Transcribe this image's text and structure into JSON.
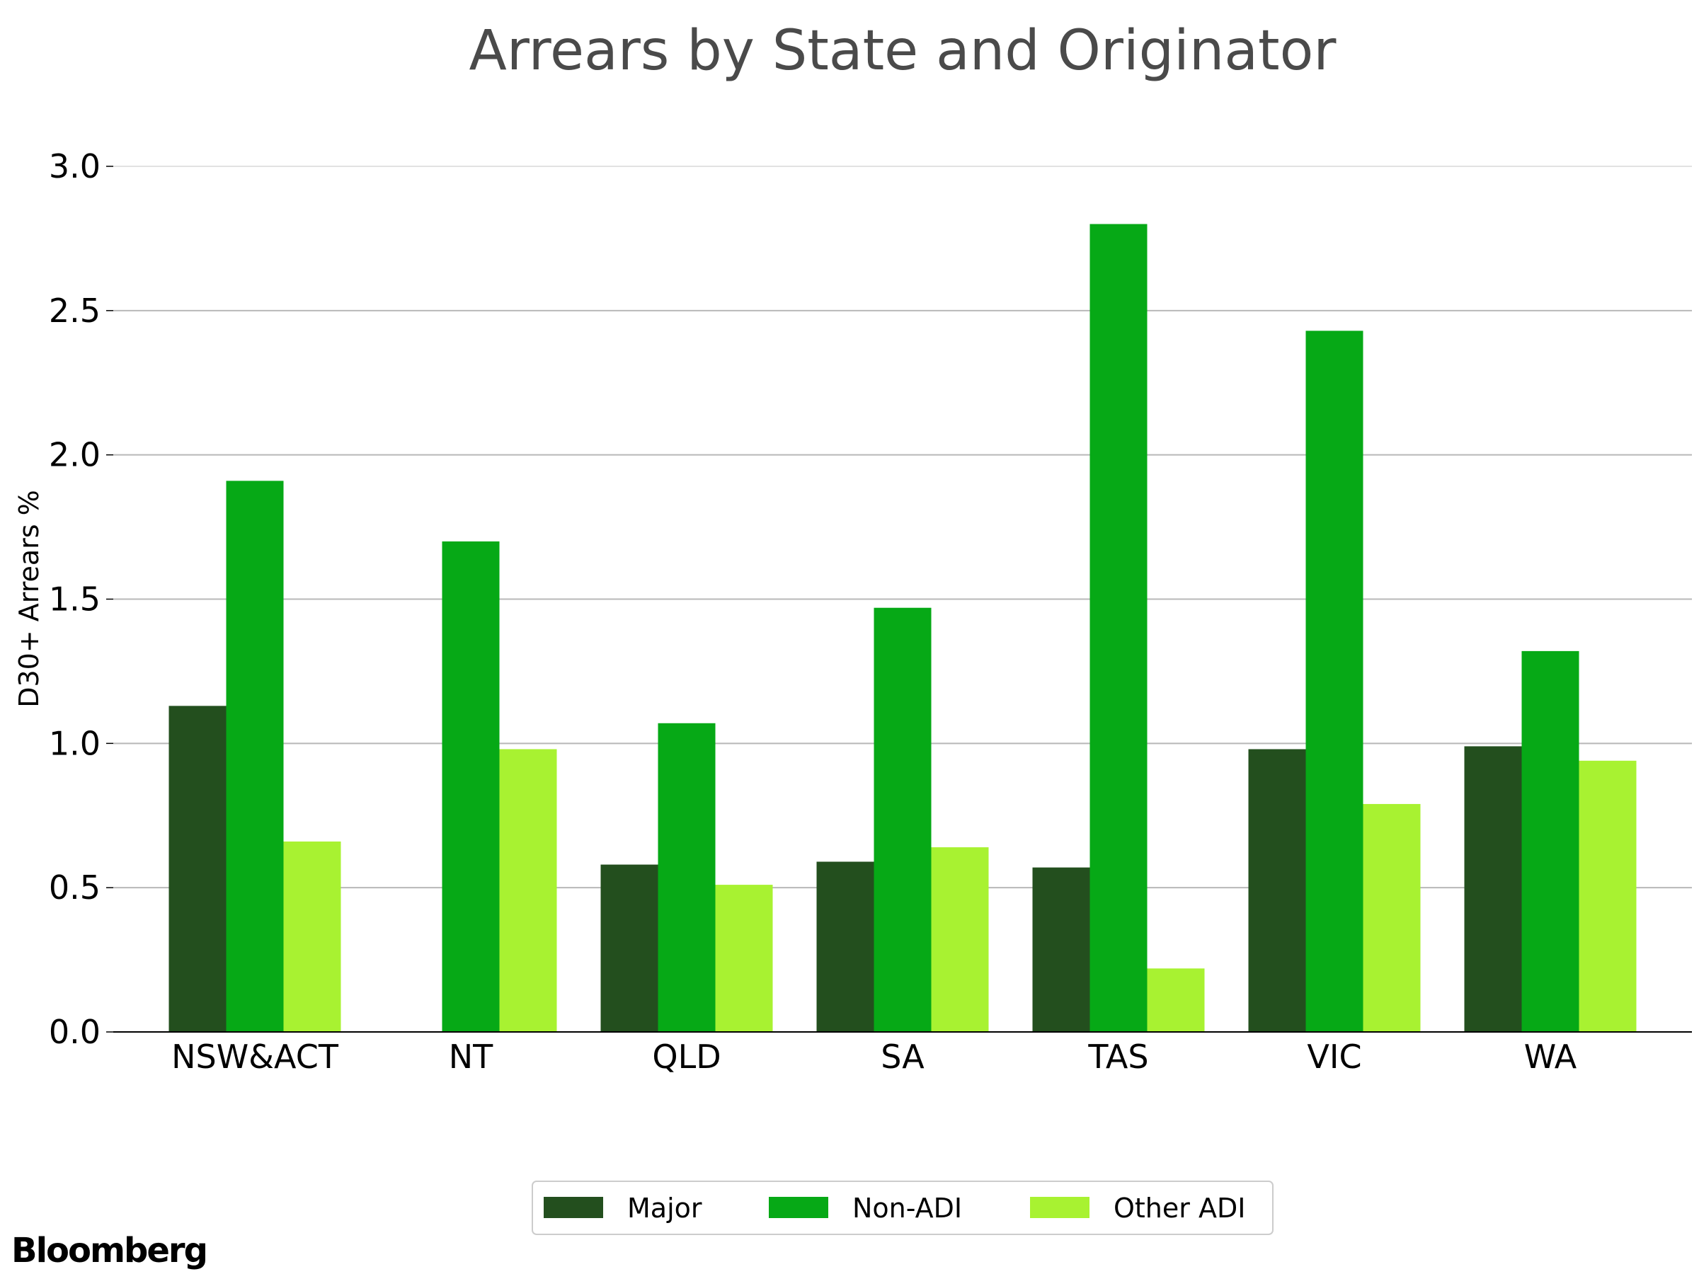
{
  "chart_data": {
    "type": "bar",
    "title": "Arrears by State and Originator",
    "xlabel": "",
    "ylabel": "D30+ Arrears %",
    "ylim": [
      0,
      3.0
    ],
    "yticks": [
      "0.0",
      "0.5",
      "1.0",
      "1.5",
      "2.0",
      "2.5",
      "3.0"
    ],
    "grid": "horizontal",
    "legend": "bottom-center",
    "categories": [
      "NSW&ACT",
      "NT",
      "QLD",
      "SA",
      "TAS",
      "VIC",
      "WA"
    ],
    "series": [
      {
        "name": "Major",
        "color": "#234f1e",
        "values": [
          1.13,
          null,
          0.58,
          0.59,
          0.57,
          0.98,
          0.99
        ]
      },
      {
        "name": "Non-ADI",
        "color": "#06a916",
        "values": [
          1.91,
          1.7,
          1.07,
          1.47,
          2.8,
          2.43,
          1.32
        ]
      },
      {
        "name": "Other ADI",
        "color": "#a8f231",
        "values": [
          0.66,
          0.98,
          0.51,
          0.64,
          0.22,
          0.79,
          0.94
        ]
      }
    ]
  },
  "brand": "Bloomberg"
}
